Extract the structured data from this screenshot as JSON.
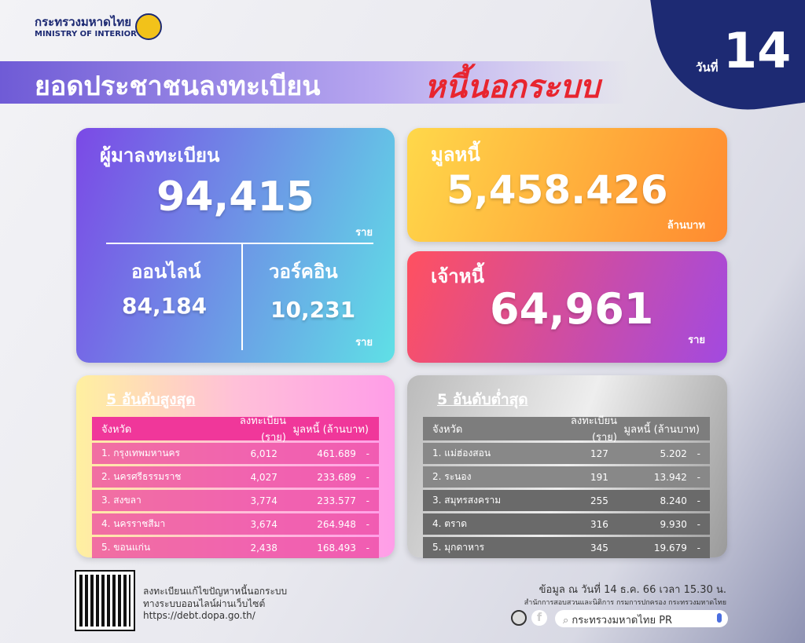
{
  "header": {
    "ministry_th": "กระทรวงมหาดไทย",
    "ministry_en": "MINISTRY OF INTERIOR",
    "day_label": "วันที่",
    "day_number": "14",
    "title_main": "ยอดประชาชนลงทะเบียน",
    "title_highlight": "หนี้นอกระบบ"
  },
  "registrants": {
    "label": "ผู้มาลงทะเบียน",
    "total": "94,415",
    "unit": "ราย",
    "online_label": "ออนไลน์",
    "online": "84,184",
    "walkin_label": "วอร์คอิน",
    "walkin": "10,231",
    "walkin_unit": "ราย"
  },
  "debt": {
    "label": "มูลหนี้",
    "value": "5,458.426",
    "unit": "ล้านบาท"
  },
  "creditors": {
    "label": "เจ้าหนี้",
    "value": "64,961",
    "unit": "ราย"
  },
  "top5": {
    "title": "5 อันดับสูงสุด",
    "headers": [
      "จังหวัด",
      "ลงทะเบียน (ราย)",
      "มูลหนี้ (ล้านบาท)"
    ],
    "rows": [
      [
        "1. กรุงเทพมหานคร",
        "6,012",
        "461.689",
        "-"
      ],
      [
        "2. นครศรีธรรมราช",
        "4,027",
        "233.689",
        "-"
      ],
      [
        "3. สงขลา",
        "3,774",
        "233.577",
        "-"
      ],
      [
        "4. นครราชสีมา",
        "3,674",
        "264.948",
        "-"
      ],
      [
        "5. ขอนแก่น",
        "2,438",
        "168.493",
        "-"
      ]
    ]
  },
  "bottom5": {
    "title": "5 อันดับต่ำสุด",
    "headers": [
      "จังหวัด",
      "ลงทะเบียน (ราย)",
      "มูลหนี้ (ล้านบาท)"
    ],
    "rows": [
      [
        "1. แม่ฮ่องสอน",
        "127",
        "5.202",
        "-"
      ],
      [
        "2. ระนอง",
        "191",
        "13.942",
        "-"
      ],
      [
        "3. สมุทรสงคราม",
        "255",
        "8.240",
        "-"
      ],
      [
        "4. ตราด",
        "316",
        "9.930",
        "-"
      ],
      [
        "5. มุกดาหาร",
        "345",
        "19.679",
        "-"
      ]
    ]
  },
  "footer": {
    "qr_line1": "ลงทะเบียนแก้ไขปัญหาหนี้นอกระบบ",
    "qr_line2": "ทางระบบออนไลน์ผ่านเว็บไซต์",
    "url": "https://debt.dopa.go.th/",
    "data_as_of": "ข้อมูล ณ วันที่ 14 ธ.ค. 66 เวลา 15.30 น.",
    "office": "สำนักการสอบสวนและนิติการ กรมการปกครอง กระทรวงมหาดไทย",
    "search_text": "กระทรวงมหาดไทย PR"
  }
}
